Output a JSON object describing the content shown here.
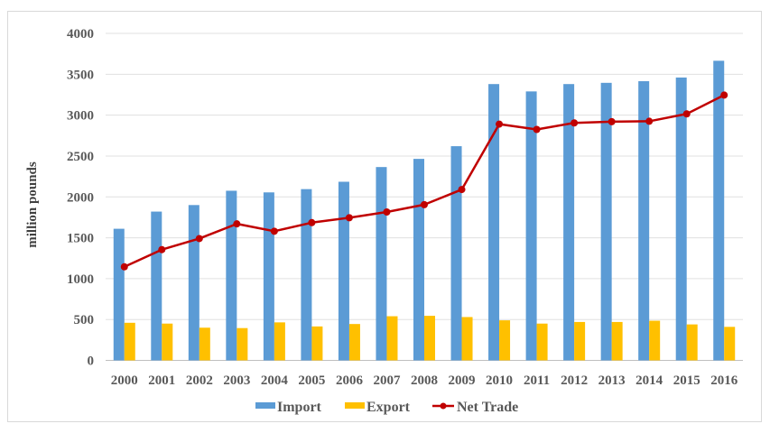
{
  "chart_data": {
    "type": "bar",
    "title": "",
    "xlabel": "",
    "ylabel": "million pounds",
    "ylim": [
      0,
      4000
    ],
    "yticks": [
      0,
      500,
      1000,
      1500,
      2000,
      2500,
      3000,
      3500,
      4000
    ],
    "grid": true,
    "legend_position": "bottom",
    "categories": [
      "2000",
      "2001",
      "2002",
      "2003",
      "2004",
      "2005",
      "2006",
      "2007",
      "2008",
      "2009",
      "2010",
      "2011",
      "2012",
      "2013",
      "2014",
      "2015",
      "2016"
    ],
    "series": [
      {
        "name": "Import",
        "type": "bar",
        "color": "#5B9BD5",
        "values": [
          1610,
          1820,
          1900,
          2075,
          2055,
          2095,
          2185,
          2365,
          2465,
          2620,
          3380,
          3290,
          3380,
          3395,
          3415,
          3460,
          3665
        ]
      },
      {
        "name": "Export",
        "type": "bar",
        "color": "#FFC000",
        "values": [
          460,
          450,
          400,
          395,
          465,
          415,
          445,
          540,
          545,
          530,
          490,
          450,
          470,
          470,
          485,
          440,
          410
        ]
      },
      {
        "name": "Net Trade",
        "type": "line",
        "color": "#C00000",
        "values": [
          1145,
          1355,
          1490,
          1670,
          1580,
          1685,
          1745,
          1815,
          1905,
          2090,
          2890,
          2825,
          2905,
          2920,
          2925,
          3015,
          3245
        ]
      }
    ]
  }
}
